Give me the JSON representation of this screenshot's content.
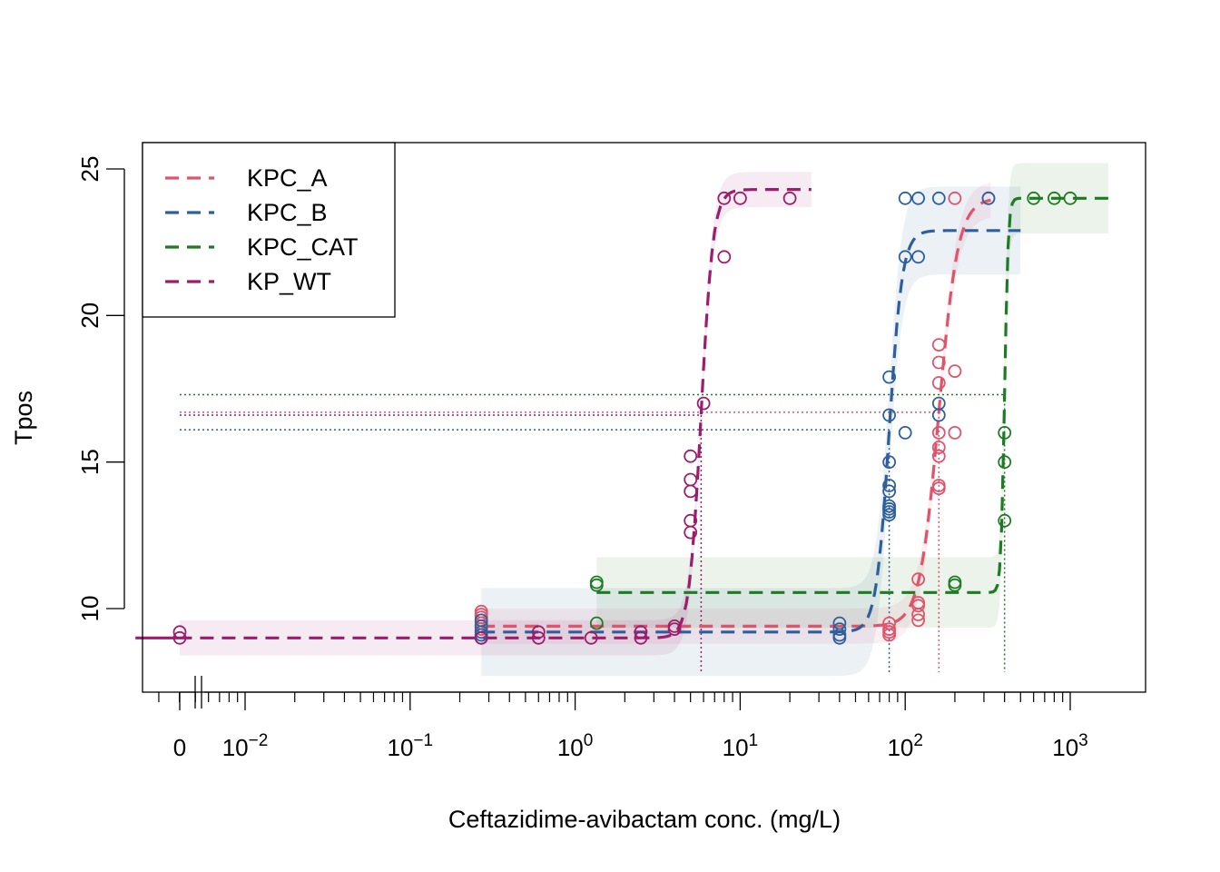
{
  "chart_data": {
    "type": "scatter",
    "title": "",
    "xlabel": "Ceftazidime-avibactam conc. (mg/L)",
    "ylabel": "Tpos",
    "x_scale": "log",
    "x_break_label": "0",
    "xlim": [
      0.002,
      2000
    ],
    "ylim": [
      7.2,
      25.9
    ],
    "x_ticks": [
      {
        "value": 0.01,
        "base": "10",
        "exp": "−2"
      },
      {
        "value": 0.1,
        "base": "10",
        "exp": "−1"
      },
      {
        "value": 1,
        "base": "10",
        "exp": "0"
      },
      {
        "value": 10,
        "base": "10",
        "exp": "1"
      },
      {
        "value": 100,
        "base": "10",
        "exp": "2"
      },
      {
        "value": 1000,
        "base": "10",
        "exp": "3"
      }
    ],
    "y_ticks": [
      10,
      15,
      20,
      25
    ],
    "legend_position": "top-left",
    "grid": false,
    "series": [
      {
        "name": "KPC_A",
        "color": "#DF536B",
        "fit": {
          "bottom": 9.4,
          "top": 24.0,
          "ec50": 160,
          "hill": 7.5,
          "x_min": 0.27,
          "x_max": 330
        },
        "band": {
          "x_min": 0.27,
          "x_max": 330,
          "half_width": 0.6
        },
        "threshold": {
          "y": 16.7,
          "x": 160
        },
        "points": [
          [
            0.27,
            9.9
          ],
          [
            0.27,
            9.8
          ],
          [
            0.27,
            9.7
          ],
          [
            0.27,
            9.5
          ],
          [
            0.27,
            9.3
          ],
          [
            80,
            9.5
          ],
          [
            80,
            9.3
          ],
          [
            80,
            9.2
          ],
          [
            80,
            9.1
          ],
          [
            120,
            11.0
          ],
          [
            120,
            10.2
          ],
          [
            120,
            10.1
          ],
          [
            120,
            9.8
          ],
          [
            120,
            9.6
          ],
          [
            160,
            19.0
          ],
          [
            160,
            18.4
          ],
          [
            160,
            17.7
          ],
          [
            160,
            16.0
          ],
          [
            160,
            15.5
          ],
          [
            160,
            15.2
          ],
          [
            160,
            14.2
          ],
          [
            160,
            14.1
          ],
          [
            200,
            18.1
          ],
          [
            200,
            16.0
          ],
          [
            200,
            24.0
          ],
          [
            320,
            24.0
          ]
        ]
      },
      {
        "name": "KPC_B",
        "color": "#2E5F9B",
        "fit": {
          "bottom": 9.2,
          "top": 22.9,
          "ec50": 80,
          "hill": 11,
          "x_min": 0.27,
          "x_max": 500
        },
        "band": {
          "x_min": 0.27,
          "x_max": 500,
          "half_width": 1.5
        },
        "threshold": {
          "y": 16.1,
          "x": 80
        },
        "points": [
          [
            0.27,
            9.6
          ],
          [
            0.27,
            9.4
          ],
          [
            0.27,
            9.2
          ],
          [
            0.27,
            9.1
          ],
          [
            0.27,
            9.0
          ],
          [
            40,
            9.5
          ],
          [
            40,
            9.3
          ],
          [
            40,
            9.1
          ],
          [
            40,
            9.0
          ],
          [
            80,
            17.9
          ],
          [
            80,
            16.6
          ],
          [
            80,
            15.0
          ],
          [
            80,
            14.2
          ],
          [
            80,
            14.0
          ],
          [
            80,
            13.5
          ],
          [
            80,
            13.4
          ],
          [
            80,
            13.3
          ],
          [
            80,
            13.2
          ],
          [
            100,
            22.0
          ],
          [
            100,
            16.0
          ],
          [
            100,
            24.0
          ],
          [
            120,
            22.0
          ],
          [
            120,
            24.0
          ],
          [
            160,
            17.0
          ],
          [
            160,
            16.6
          ],
          [
            160,
            24.0
          ],
          [
            320,
            24.0
          ]
        ]
      },
      {
        "name": "KPC_CAT",
        "color": "#1E7B23",
        "fit": {
          "bottom": 10.55,
          "top": 24.0,
          "ec50": 400,
          "hill": 40,
          "x_min": 1.35,
          "x_max": 1700
        },
        "band": {
          "x_min": 1.35,
          "x_max": 1700,
          "half_width": 1.2
        },
        "threshold": {
          "y": 17.3,
          "x": 400
        },
        "points": [
          [
            1.35,
            10.9
          ],
          [
            1.35,
            10.8
          ],
          [
            1.35,
            9.5
          ],
          [
            200,
            10.9
          ],
          [
            200,
            10.8
          ],
          [
            400,
            16.0
          ],
          [
            400,
            15.0
          ],
          [
            400,
            13.0
          ],
          [
            600,
            24.0
          ],
          [
            800,
            24.0
          ],
          [
            1000,
            24.0
          ]
        ]
      },
      {
        "name": "KP_WT",
        "color": "#9B1D6B",
        "fit": {
          "bottom": 9.0,
          "top": 24.3,
          "ec50": 5.8,
          "hill": 12,
          "x_min": 0.002,
          "x_max": 27
        },
        "band": {
          "x_min": 0.002,
          "x_max": 27,
          "half_width": 0.6
        },
        "threshold": {
          "y": 16.6,
          "x": 5.8
        },
        "points": [
          [
            0.002,
            9.2
          ],
          [
            0.002,
            9.0
          ],
          [
            0.27,
            9.0
          ],
          [
            0.6,
            9.0
          ],
          [
            0.6,
            9.2
          ],
          [
            1.25,
            9.0
          ],
          [
            2.5,
            9.0
          ],
          [
            2.5,
            9.2
          ],
          [
            4,
            9.3
          ],
          [
            4,
            9.4
          ],
          [
            5,
            12.6
          ],
          [
            5,
            13.0
          ],
          [
            5,
            14.0
          ],
          [
            5,
            14.4
          ],
          [
            5,
            15.2
          ],
          [
            6,
            17.0
          ],
          [
            8,
            22.0
          ],
          [
            8,
            24.0
          ],
          [
            10,
            24.0
          ],
          [
            20,
            24.0
          ]
        ]
      }
    ]
  }
}
